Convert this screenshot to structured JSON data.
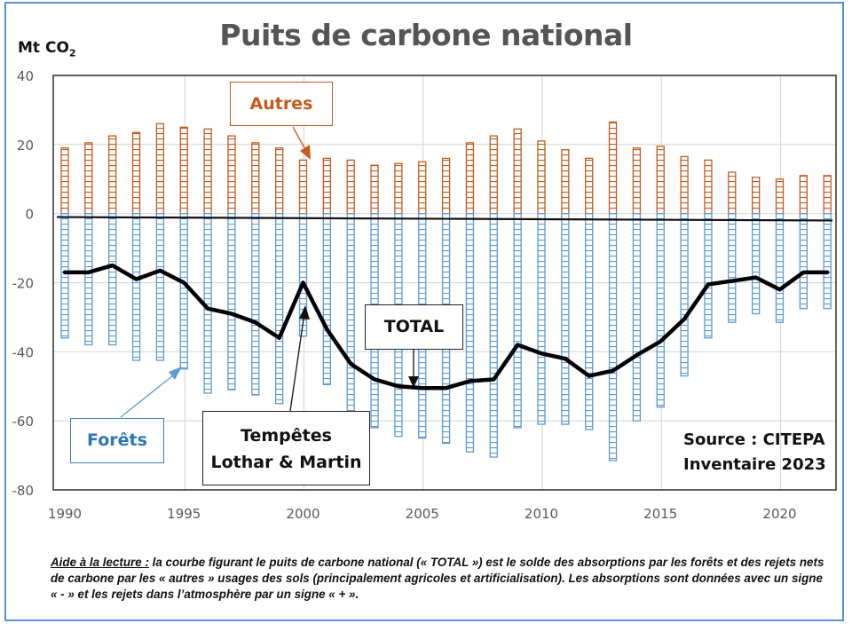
{
  "chart_data": {
    "type": "bar",
    "title": "Puits de carbone national",
    "ylabel": "Mt CO2",
    "ylabel_main": "Mt CO",
    "ylabel_sub": "2",
    "xlabel": "",
    "ylim": [
      -80,
      40
    ],
    "yticks": [
      "40",
      "20",
      "0",
      "-20",
      "-40",
      "-60",
      "-80"
    ],
    "ytick_values": [
      40,
      20,
      0,
      -20,
      -40,
      -60,
      -80
    ],
    "xticks": [
      "1990",
      "1995",
      "2000",
      "2005",
      "2010",
      "2015",
      "2020"
    ],
    "xtick_values": [
      1990,
      1995,
      2000,
      2005,
      2010,
      2015,
      2020
    ],
    "grid": true,
    "x": [
      1990,
      1991,
      1992,
      1993,
      1994,
      1995,
      1996,
      1997,
      1998,
      1999,
      2000,
      2001,
      2002,
      2003,
      2004,
      2005,
      2006,
      2007,
      2008,
      2009,
      2010,
      2011,
      2012,
      2013,
      2014,
      2015,
      2016,
      2017,
      2018,
      2019,
      2020,
      2021,
      2022
    ],
    "series": [
      {
        "name": "Autres",
        "kind": "bar",
        "color": "#c65a1e",
        "values": [
          19,
          20.5,
          22.5,
          23.5,
          26,
          25,
          24.5,
          22.5,
          20.5,
          19,
          15.5,
          16,
          15.5,
          14,
          14.5,
          15,
          16,
          20.5,
          22.5,
          24.5,
          21,
          18.5,
          16,
          26.5,
          19,
          19.5,
          16.5,
          15.5,
          12,
          10.5,
          10,
          11,
          11
        ]
      },
      {
        "name": "Forêts",
        "kind": "bar",
        "color": "#5b9bd5",
        "values": [
          -36,
          -38,
          -38,
          -42.5,
          -42.5,
          -45,
          -52,
          -51,
          -52.5,
          -55,
          -35.5,
          -49.5,
          -59,
          -62,
          -64.5,
          -65,
          -66.5,
          -69,
          -70.5,
          -62,
          -61,
          -61,
          -62.5,
          -71.5,
          -60,
          -56,
          -47,
          -36,
          -31.5,
          -29,
          -31.5,
          -27.5,
          -27.5
        ]
      },
      {
        "name": "TOTAL",
        "kind": "line",
        "color": "#000000",
        "values": [
          -17,
          -17,
          -15,
          -19,
          -16.5,
          -20,
          -27.5,
          -29,
          -31.5,
          -36,
          -20,
          -33.5,
          -43.5,
          -48,
          -50,
          -50.5,
          -50.5,
          -48.5,
          -48,
          -38,
          -40.5,
          -42,
          -47,
          -45.5,
          -41,
          -37,
          -30.5,
          -20.5,
          -19.5,
          -18.5,
          -22,
          -17,
          -17
        ]
      }
    ],
    "baseline": {
      "start": -1,
      "end": -2
    },
    "annotations": [
      {
        "text": "Autres",
        "color": "#c65a1e"
      },
      {
        "text": "Forêts",
        "color": "#2e75b6"
      },
      {
        "text": "TOTAL",
        "color": "#111111"
      },
      {
        "text": "Tempêtes Lothar & Martin",
        "color": "#111111"
      },
      {
        "text": "Source : CITEPA Inventaire 2023",
        "color": "#111111"
      }
    ],
    "legend": "none"
  },
  "labels": {
    "autres": "Autres",
    "forets": "Forêts",
    "total": "TOTAL",
    "tempetes_line1": "Tempêtes",
    "tempetes_line2": "Lothar & Martin",
    "source_line1": "Source : CITEPA",
    "source_line2": "Inventaire 2023"
  },
  "note": {
    "lead": "Aide à la lecture ",
    "colon": ":",
    "body": " la courbe figurant le puits de carbone national (« TOTAL ») est le solde des absorptions par les forêts et des rejets nets de carbone par les « autres » usages des sols (principalement agricoles et artificialisation). Les absorptions sont données avec un signe « - » et les rejets dans l’atmosphère par un signe « + »."
  }
}
